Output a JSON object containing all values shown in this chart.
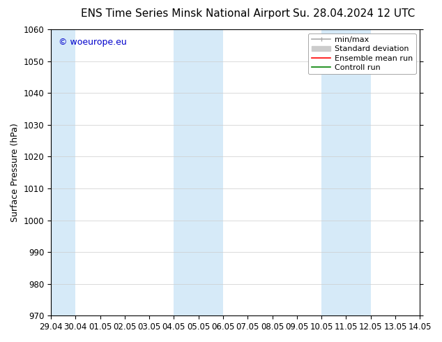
{
  "title_left": "ENS Time Series Minsk National Airport",
  "title_right": "Su. 28.04.2024 12 UTC",
  "ylabel": "Surface Pressure (hPa)",
  "ylim": [
    970,
    1060
  ],
  "yticks": [
    970,
    980,
    990,
    1000,
    1010,
    1020,
    1030,
    1040,
    1050,
    1060
  ],
  "xtick_labels": [
    "29.04",
    "30.04",
    "01.05",
    "02.05",
    "03.05",
    "04.05",
    "05.05",
    "06.05",
    "07.05",
    "08.05",
    "09.05",
    "10.05",
    "11.05",
    "12.05",
    "13.05",
    "14.05"
  ],
  "xlim": [
    0,
    15
  ],
  "shaded_regions": [
    {
      "x_start": 0,
      "x_end": 1,
      "color": "#d6eaf8"
    },
    {
      "x_start": 5,
      "x_end": 7,
      "color": "#d6eaf8"
    },
    {
      "x_start": 11,
      "x_end": 13,
      "color": "#d6eaf8"
    }
  ],
  "watermark_text": "© woeurope.eu",
  "watermark_color": "#0000cc",
  "bg_color": "#ffffff",
  "grid_color": "#cccccc",
  "legend_items": [
    {
      "label": "min/max",
      "color": "#aaaaaa",
      "lw": 1.2,
      "linestyle": "solid"
    },
    {
      "label": "Standard deviation",
      "color": "#cccccc",
      "lw": 6,
      "linestyle": "solid"
    },
    {
      "label": "Ensemble mean run",
      "color": "#ff0000",
      "lw": 1.2,
      "linestyle": "solid"
    },
    {
      "label": "Controll run",
      "color": "#008000",
      "lw": 1.2,
      "linestyle": "solid"
    }
  ],
  "title_fontsize": 11,
  "tick_label_fontsize": 8.5,
  "ylabel_fontsize": 9,
  "legend_fontsize": 8
}
